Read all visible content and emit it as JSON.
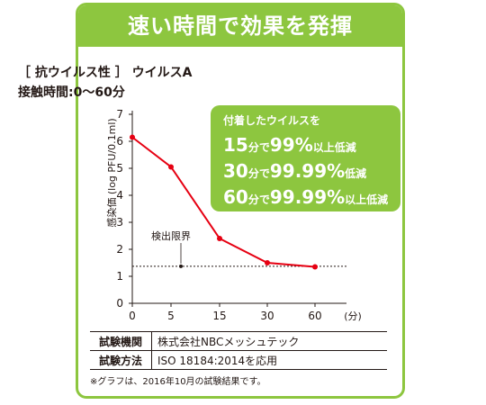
{
  "title": "速い時間で効果を発揮",
  "subtitle": "［ 抗ウイルス性 ］ ウイルスA",
  "condition": "接触時間:0〜60分",
  "callout": {
    "heading": "付着したウイルスを",
    "lines": [
      {
        "time": "15",
        "unit": "分で",
        "pct": "99%",
        "suffix": "以上低減"
      },
      {
        "time": "30",
        "unit": "分で",
        "pct": "99.99%",
        "suffix": "低減"
      },
      {
        "time": "60",
        "unit": "分で",
        "pct": "99.99%",
        "suffix": "以上低減"
      }
    ]
  },
  "colors": {
    "accent": "#8dc63f",
    "series": "#e60012",
    "text": "#231815"
  },
  "chart_data": {
    "type": "line",
    "ylabel": "感染価 (log PFU/0.1ml)",
    "xlabel_unit": "(分)",
    "x_ticks": [
      "0",
      "5",
      "15",
      "30",
      "60"
    ],
    "y_ticks": [
      0,
      1,
      2,
      3,
      4,
      5,
      6,
      7
    ],
    "ylim": [
      0,
      7
    ],
    "series": [
      {
        "values": [
          6.15,
          5.05,
          2.4,
          1.5,
          1.35
        ]
      }
    ],
    "detection_limit": {
      "label": "検出限界",
      "value": 1.37
    }
  },
  "table": [
    {
      "key": "試験機関",
      "value": "株式会社NBCメッシュテック"
    },
    {
      "key": "試験方法",
      "value": "ISO 18184:2014を応用"
    }
  ],
  "footnote": "※グラフは、2016年10月の試験結果です。"
}
